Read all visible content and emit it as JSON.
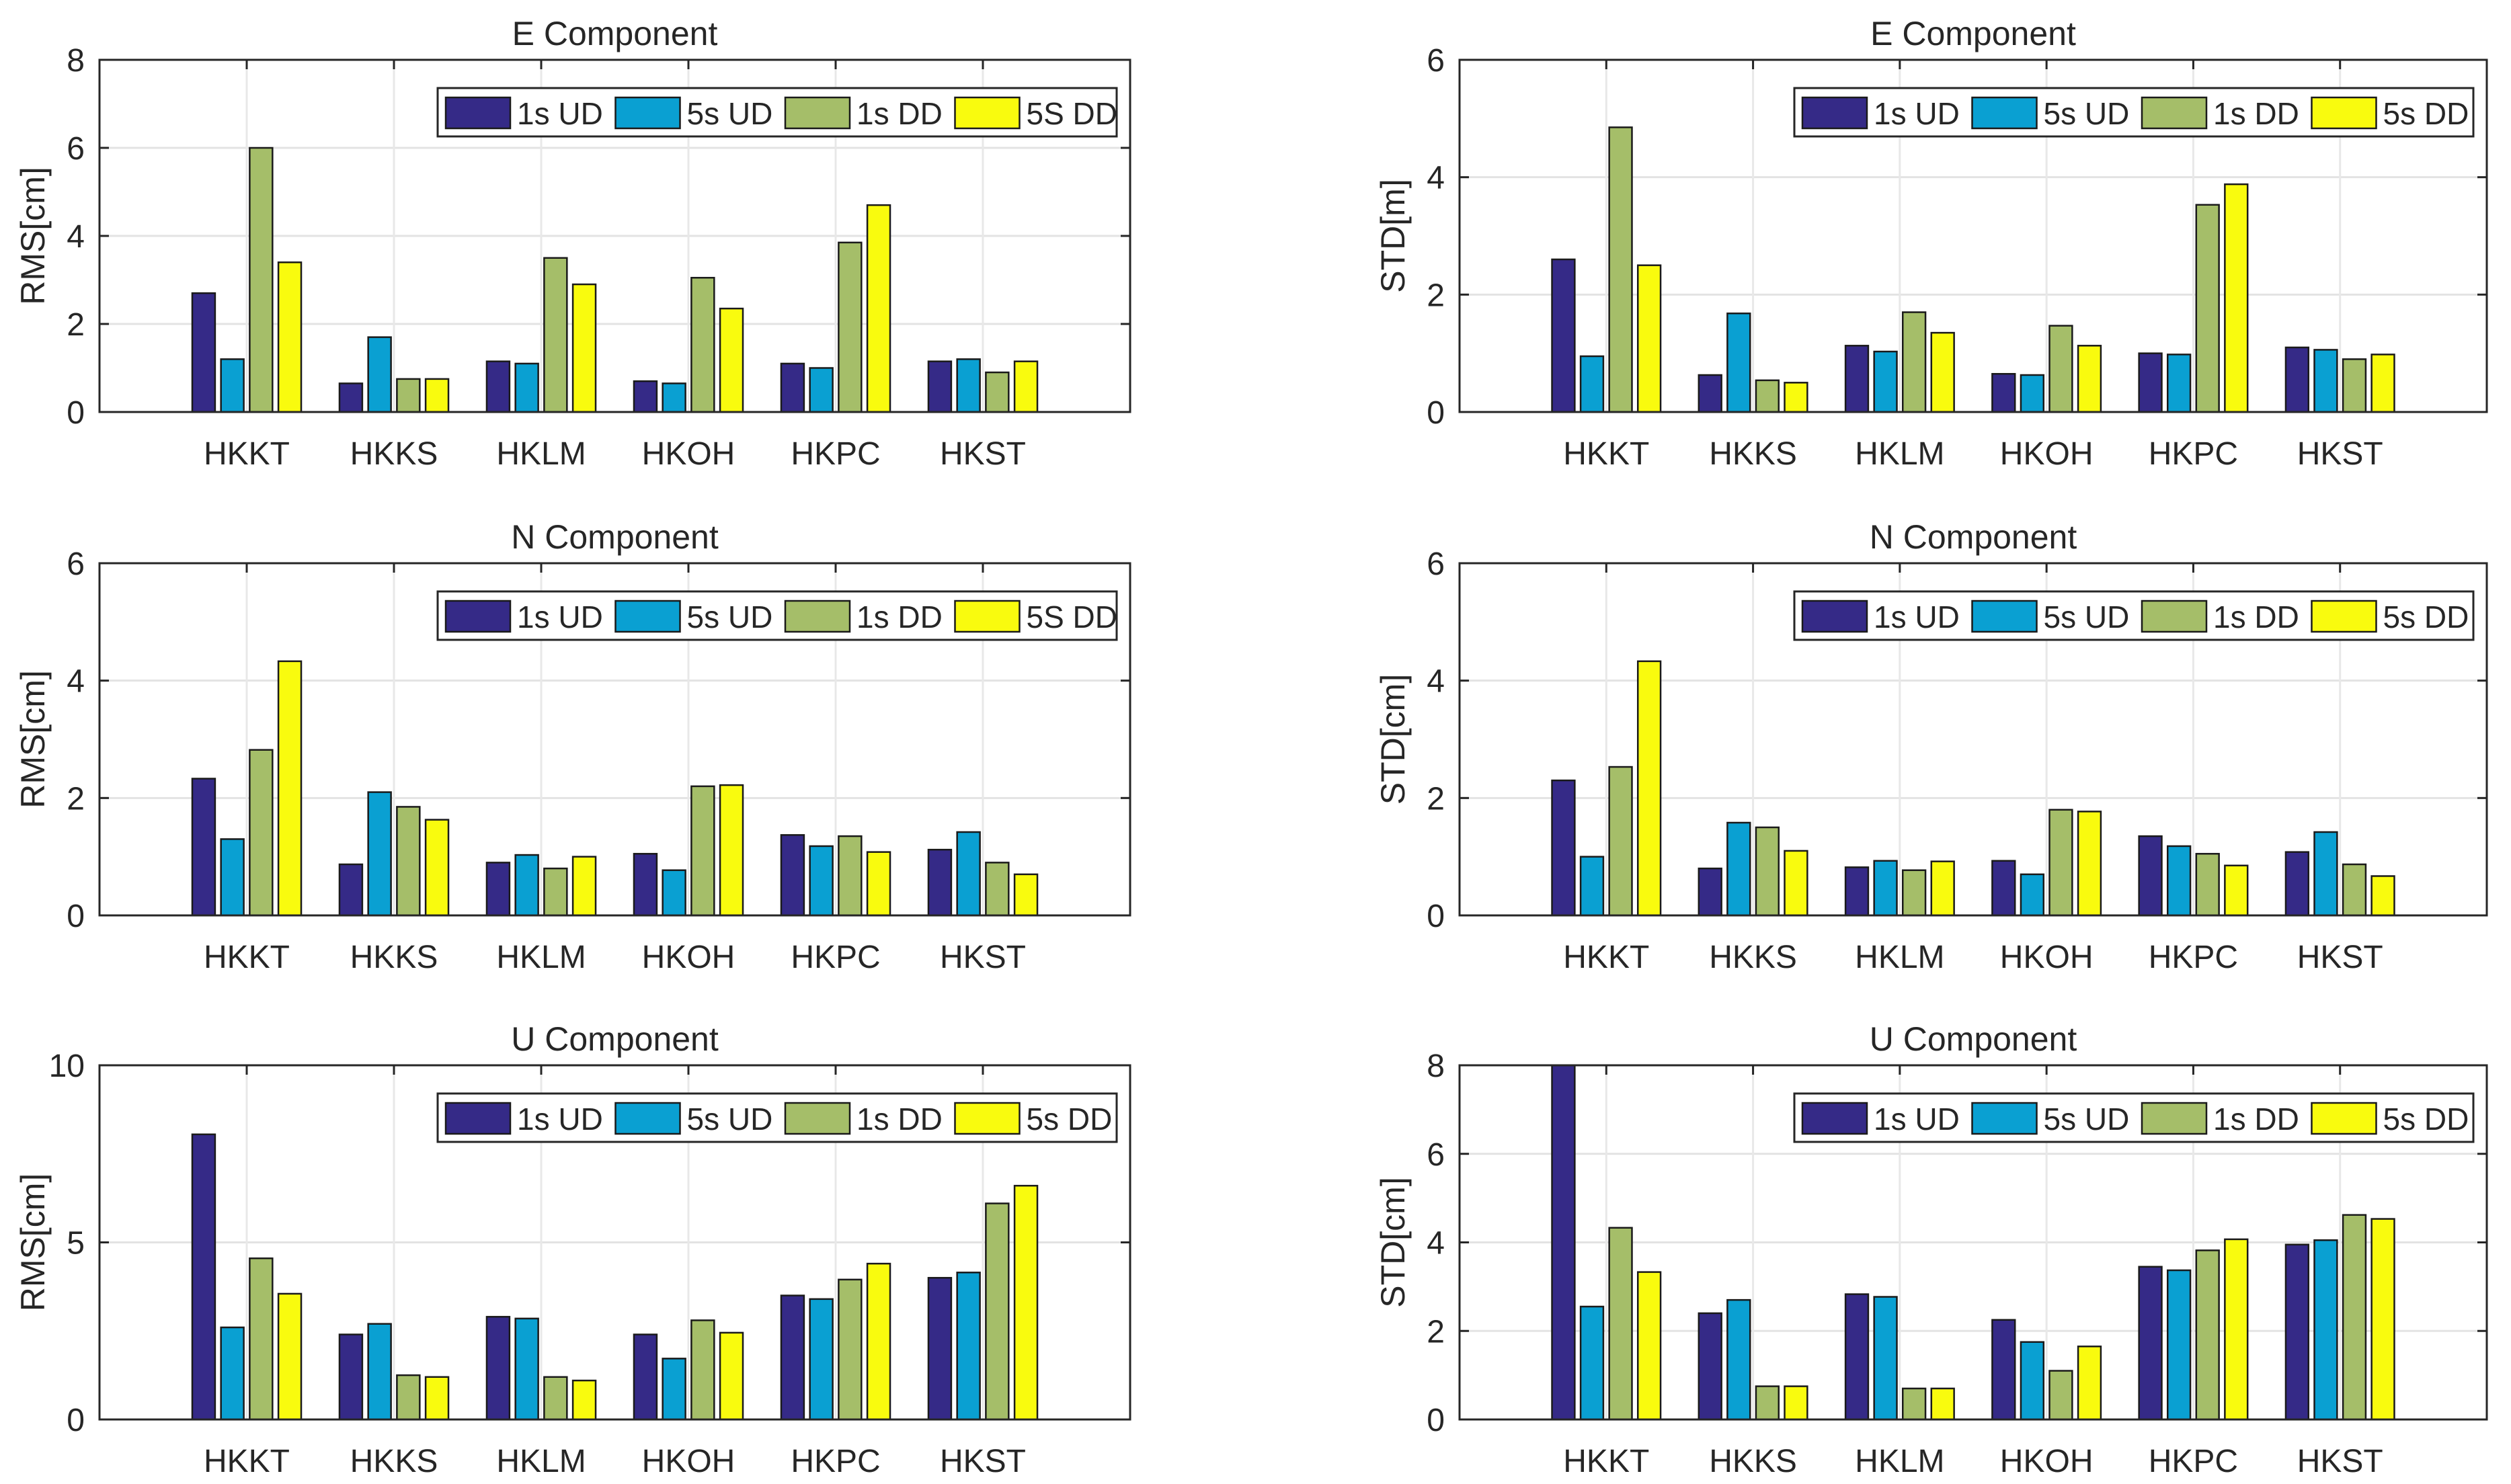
{
  "chart_data": [
    {
      "type": "bar",
      "title": "E Component",
      "ylabel": "RMS[cm]",
      "ylim": [
        0,
        8
      ],
      "yticks": [
        0,
        2,
        4,
        6,
        8
      ],
      "grid": true,
      "legend_placement": "top-right",
      "categories": [
        "HKKT",
        "HKKS",
        "HKLM",
        "HKOH",
        "HKPC",
        "HKST"
      ],
      "series": [
        {
          "name": "1s UD",
          "values": [
            2.7,
            0.65,
            1.15,
            0.7,
            1.1,
            1.15
          ]
        },
        {
          "name": "5s UD",
          "values": [
            1.2,
            1.7,
            1.1,
            0.65,
            1.0,
            1.2
          ]
        },
        {
          "name": "1s DD",
          "values": [
            6.0,
            0.75,
            3.5,
            3.05,
            3.85,
            0.9
          ]
        },
        {
          "name": "5S DD",
          "values": [
            3.4,
            0.75,
            2.9,
            2.35,
            4.7,
            1.15
          ]
        }
      ]
    },
    {
      "type": "bar",
      "title": "E Component",
      "ylabel": "STD[m]",
      "ylim": [
        0,
        6
      ],
      "yticks": [
        0,
        2,
        4,
        6
      ],
      "grid": true,
      "legend_placement": "top-right",
      "categories": [
        "HKKT",
        "HKKS",
        "HKLM",
        "HKOH",
        "HKPC",
        "HKST"
      ],
      "series": [
        {
          "name": "1s UD",
          "values": [
            2.6,
            0.63,
            1.13,
            0.65,
            1.0,
            1.1
          ]
        },
        {
          "name": "5s UD",
          "values": [
            0.95,
            1.68,
            1.03,
            0.63,
            0.98,
            1.06
          ]
        },
        {
          "name": "1s DD",
          "values": [
            4.85,
            0.54,
            1.7,
            1.47,
            3.53,
            0.9
          ]
        },
        {
          "name": "5s DD",
          "values": [
            2.5,
            0.5,
            1.35,
            1.13,
            3.88,
            0.98
          ]
        }
      ]
    },
    {
      "type": "bar",
      "title": "N Component",
      "ylabel": "RMS[cm]",
      "ylim": [
        0,
        6
      ],
      "yticks": [
        0,
        2,
        4,
        6
      ],
      "grid": true,
      "legend_placement": "top-right",
      "categories": [
        "HKKT",
        "HKKS",
        "HKLM",
        "HKOH",
        "HKPC",
        "HKST"
      ],
      "series": [
        {
          "name": "1s UD",
          "values": [
            2.33,
            0.87,
            0.9,
            1.05,
            1.37,
            1.12
          ]
        },
        {
          "name": "5s UD",
          "values": [
            1.3,
            2.1,
            1.03,
            0.77,
            1.18,
            1.42
          ]
        },
        {
          "name": "1s DD",
          "values": [
            2.82,
            1.85,
            0.8,
            2.2,
            1.35,
            0.9
          ]
        },
        {
          "name": "5S DD",
          "values": [
            4.33,
            1.63,
            1.0,
            2.22,
            1.08,
            0.7
          ]
        }
      ]
    },
    {
      "type": "bar",
      "title": "N Component",
      "ylabel": "STD[cm]",
      "ylim": [
        0,
        6
      ],
      "yticks": [
        0,
        2,
        4,
        6
      ],
      "grid": true,
      "legend_placement": "top-right",
      "categories": [
        "HKKT",
        "HKKS",
        "HKLM",
        "HKOH",
        "HKPC",
        "HKST"
      ],
      "series": [
        {
          "name": "1s UD",
          "values": [
            2.3,
            0.8,
            0.82,
            0.93,
            1.35,
            1.08
          ]
        },
        {
          "name": "5s UD",
          "values": [
            1.0,
            1.58,
            0.93,
            0.7,
            1.18,
            1.42
          ]
        },
        {
          "name": "1s DD",
          "values": [
            2.53,
            1.5,
            0.77,
            1.8,
            1.05,
            0.87
          ]
        },
        {
          "name": "5s DD",
          "values": [
            4.33,
            1.1,
            0.92,
            1.77,
            0.85,
            0.67
          ]
        }
      ]
    },
    {
      "type": "bar",
      "title": "U Component",
      "ylabel": "RMS[cm]",
      "ylim": [
        0,
        10
      ],
      "yticks": [
        0,
        5,
        10
      ],
      "grid": true,
      "legend_placement": "top-right",
      "categories": [
        "HKKT",
        "HKKS",
        "HKLM",
        "HKOH",
        "HKPC",
        "HKST"
      ],
      "series": [
        {
          "name": "1s UD",
          "values": [
            8.05,
            2.4,
            2.9,
            2.4,
            3.5,
            4.0
          ]
        },
        {
          "name": "5s UD",
          "values": [
            2.6,
            2.7,
            2.85,
            1.72,
            3.4,
            4.15
          ]
        },
        {
          "name": "1s DD",
          "values": [
            4.55,
            1.25,
            1.2,
            2.8,
            3.95,
            6.1
          ]
        },
        {
          "name": "5s DD",
          "values": [
            3.55,
            1.2,
            1.1,
            2.45,
            4.4,
            6.6
          ]
        }
      ]
    },
    {
      "type": "bar",
      "title": "U Component",
      "ylabel": "STD[cm]",
      "ylim": [
        0,
        8
      ],
      "yticks": [
        0,
        2,
        4,
        6,
        8
      ],
      "grid": true,
      "legend_placement": "top-right",
      "categories": [
        "HKKT",
        "HKKS",
        "HKLM",
        "HKOH",
        "HKPC",
        "HKST"
      ],
      "series": [
        {
          "name": "1s UD",
          "values": [
            8.0,
            2.4,
            2.83,
            2.25,
            3.45,
            3.95
          ]
        },
        {
          "name": "5s UD",
          "values": [
            2.55,
            2.7,
            2.77,
            1.75,
            3.37,
            4.05
          ]
        },
        {
          "name": "1s DD",
          "values": [
            4.33,
            0.75,
            0.7,
            1.1,
            3.82,
            4.62
          ]
        },
        {
          "name": "5s DD",
          "values": [
            3.33,
            0.75,
            0.7,
            1.65,
            4.07,
            4.53
          ]
        }
      ]
    }
  ],
  "colors": [
    "#352A87",
    "#0AA0D2",
    "#A5BE69",
    "#F9FB0E"
  ]
}
